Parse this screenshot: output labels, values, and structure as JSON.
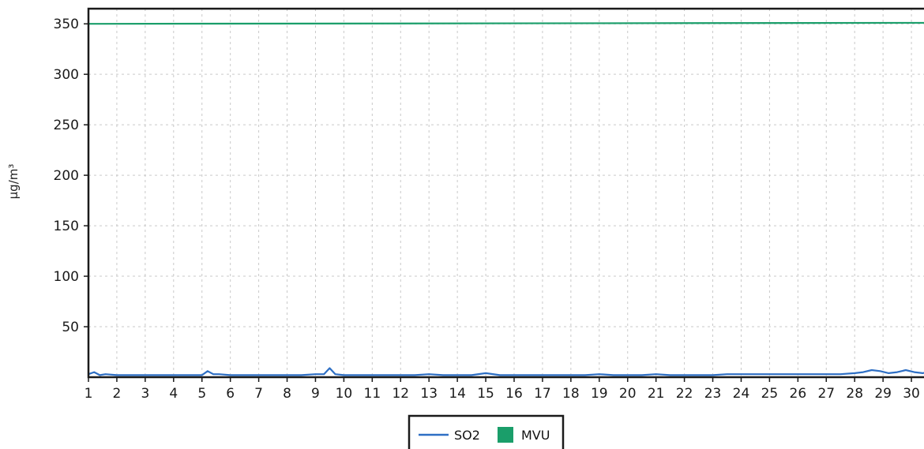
{
  "chart_data": {
    "type": "line",
    "title": "",
    "xlabel": "",
    "ylabel": "µg/m³",
    "xlim": [
      1,
      31
    ],
    "ylim": [
      0,
      365
    ],
    "x_ticks": [
      1,
      2,
      3,
      4,
      5,
      6,
      7,
      8,
      9,
      10,
      11,
      12,
      13,
      14,
      15,
      16,
      17,
      18,
      19,
      20,
      21,
      22,
      23,
      24,
      25,
      26,
      27,
      28,
      29,
      30
    ],
    "y_ticks": [
      50,
      100,
      150,
      200,
      250,
      300,
      350
    ],
    "grid": true,
    "legend_position": "bottom-center",
    "series": [
      {
        "name": "SO2",
        "color": "#2e6fc4",
        "x": [
          1,
          1.2,
          1.4,
          1.6,
          2,
          2.5,
          3,
          3.5,
          4,
          4.5,
          5,
          5.2,
          5.4,
          5.6,
          6,
          6.5,
          7,
          7.5,
          8,
          8.5,
          9,
          9.3,
          9.5,
          9.7,
          10,
          10.5,
          11,
          11.5,
          12,
          12.5,
          13,
          13.5,
          14,
          14.5,
          15,
          15.5,
          16,
          16.5,
          17,
          17.5,
          18,
          18.5,
          19,
          19.5,
          20,
          20.5,
          21,
          21.5,
          22,
          22.5,
          23,
          23.5,
          24,
          24.5,
          25,
          25.5,
          26,
          26.5,
          27,
          27.5,
          28,
          28.3,
          28.6,
          28.9,
          29.2,
          29.5,
          29.8,
          30.1,
          30.4,
          30.7,
          31
        ],
        "y": [
          3,
          5,
          2,
          3,
          2,
          2,
          2,
          2,
          2,
          2,
          2,
          6,
          3,
          3,
          2,
          2,
          2,
          2,
          2,
          2,
          3,
          3,
          9,
          3,
          2,
          2,
          2,
          2,
          2,
          2,
          3,
          2,
          2,
          2,
          4,
          2,
          2,
          2,
          2,
          2,
          2,
          2,
          3,
          2,
          2,
          2,
          3,
          2,
          2,
          2,
          2,
          3,
          3,
          3,
          3,
          3,
          3,
          3,
          3,
          3,
          4,
          5,
          7,
          6,
          4,
          5,
          7,
          5,
          4,
          6,
          8
        ]
      },
      {
        "name": "MVU",
        "color": "#1a9e6a",
        "x": [
          1,
          31
        ],
        "y": [
          350,
          351
        ]
      }
    ]
  }
}
